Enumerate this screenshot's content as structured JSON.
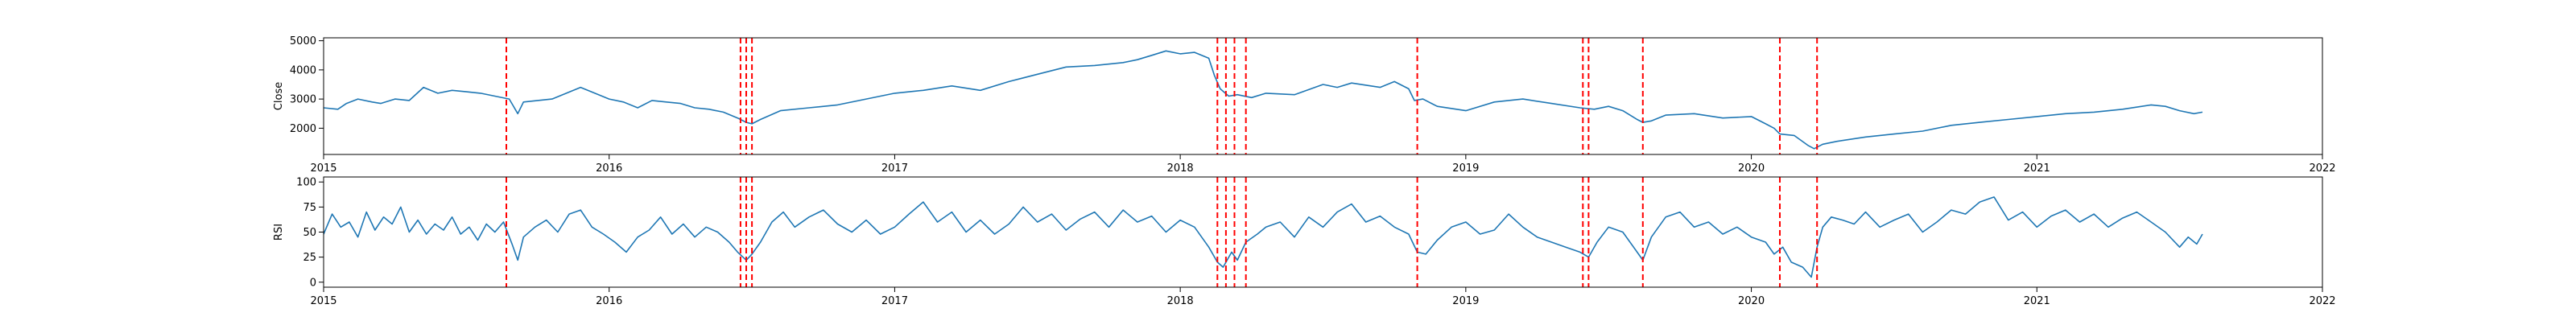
{
  "chart_data": [
    {
      "type": "line",
      "series_name": "Close",
      "title": "",
      "xlabel": "",
      "ylabel": "Close",
      "xlim": [
        2015.0,
        2022.0
      ],
      "ylim": [
        1100,
        5100
      ],
      "x_ticks": [
        2015,
        2016,
        2017,
        2018,
        2019,
        2020,
        2021,
        2022
      ],
      "x_tick_labels": [
        "2015",
        "2016",
        "2017",
        "2018",
        "2019",
        "2020",
        "2021",
        "2022"
      ],
      "y_ticks": [
        2000,
        3000,
        4000,
        5000
      ],
      "y_tick_labels": [
        "2000",
        "3000",
        "4000",
        "5000"
      ],
      "color": "#1f77b4",
      "x": [
        2015.0,
        2015.05,
        2015.08,
        2015.12,
        2015.17,
        2015.2,
        2015.25,
        2015.3,
        2015.35,
        2015.4,
        2015.45,
        2015.5,
        2015.55,
        2015.6,
        2015.65,
        2015.68,
        2015.7,
        2015.75,
        2015.8,
        2015.85,
        2015.9,
        2015.95,
        2016.0,
        2016.05,
        2016.1,
        2016.15,
        2016.2,
        2016.25,
        2016.3,
        2016.35,
        2016.4,
        2016.45,
        2016.48,
        2016.5,
        2016.53,
        2016.6,
        2016.7,
        2016.8,
        2016.9,
        2017.0,
        2017.1,
        2017.2,
        2017.3,
        2017.4,
        2017.5,
        2017.6,
        2017.7,
        2017.8,
        2017.85,
        2017.9,
        2017.95,
        2018.0,
        2018.05,
        2018.1,
        2018.12,
        2018.14,
        2018.17,
        2018.2,
        2018.25,
        2018.3,
        2018.4,
        2018.5,
        2018.55,
        2018.6,
        2018.7,
        2018.75,
        2018.8,
        2018.82,
        2018.85,
        2018.9,
        2019.0,
        2019.1,
        2019.2,
        2019.3,
        2019.4,
        2019.45,
        2019.5,
        2019.55,
        2019.6,
        2019.62,
        2019.65,
        2019.7,
        2019.8,
        2019.9,
        2020.0,
        2020.05,
        2020.08,
        2020.1,
        2020.15,
        2020.2,
        2020.22,
        2020.25,
        2020.3,
        2020.4,
        2020.5,
        2020.6,
        2020.7,
        2020.8,
        2020.9,
        2021.0,
        2021.1,
        2021.2,
        2021.3,
        2021.4,
        2021.45,
        2021.5,
        2021.55,
        2021.58
      ],
      "values": [
        2700,
        2650,
        2850,
        3000,
        2900,
        2850,
        3000,
        2950,
        3400,
        3200,
        3300,
        3250,
        3200,
        3100,
        3000,
        2500,
        2900,
        2950,
        3000,
        3200,
        3400,
        3200,
        3000,
        2900,
        2700,
        2950,
        2900,
        2850,
        2700,
        2650,
        2550,
        2350,
        2200,
        2150,
        2300,
        2600,
        2700,
        2800,
        3000,
        3200,
        3300,
        3450,
        3300,
        3600,
        3850,
        4100,
        4150,
        4250,
        4350,
        4500,
        4650,
        4550,
        4600,
        4400,
        3800,
        3350,
        3100,
        3150,
        3050,
        3200,
        3150,
        3500,
        3400,
        3550,
        3400,
        3600,
        3350,
        2950,
        3000,
        2750,
        2600,
        2900,
        3000,
        2850,
        2700,
        2650,
        2750,
        2600,
        2300,
        2200,
        2250,
        2450,
        2500,
        2350,
        2400,
        2150,
        2000,
        1800,
        1750,
        1400,
        1300,
        1450,
        1550,
        1700,
        1800,
        1900,
        2100,
        2200,
        2300,
        2400,
        2500,
        2550,
        2650,
        2800,
        2750,
        2600,
        2500,
        2550
      ]
    },
    {
      "type": "line",
      "series_name": "RSI",
      "title": "",
      "xlabel": "",
      "ylabel": "RSI",
      "xlim": [
        2015.0,
        2022.0
      ],
      "ylim": [
        -5,
        105
      ],
      "x_ticks": [
        2015,
        2016,
        2017,
        2018,
        2019,
        2020,
        2021,
        2022
      ],
      "x_tick_labels": [
        "2015",
        "2016",
        "2017",
        "2018",
        "2019",
        "2020",
        "2021",
        "2022"
      ],
      "y_ticks": [
        0,
        25,
        50,
        75,
        100
      ],
      "y_tick_labels": [
        "0",
        "25",
        "50",
        "75",
        "100"
      ],
      "color": "#1f77b4",
      "x": [
        2015.0,
        2015.03,
        2015.06,
        2015.09,
        2015.12,
        2015.15,
        2015.18,
        2015.21,
        2015.24,
        2015.27,
        2015.3,
        2015.33,
        2015.36,
        2015.39,
        2015.42,
        2015.45,
        2015.48,
        2015.51,
        2015.54,
        2015.57,
        2015.6,
        2015.63,
        2015.66,
        2015.68,
        2015.7,
        2015.74,
        2015.78,
        2015.82,
        2015.86,
        2015.9,
        2015.94,
        2015.98,
        2016.02,
        2016.06,
        2016.1,
        2016.14,
        2016.18,
        2016.22,
        2016.26,
        2016.3,
        2016.34,
        2016.38,
        2016.42,
        2016.45,
        2016.48,
        2016.5,
        2016.53,
        2016.57,
        2016.61,
        2016.65,
        2016.7,
        2016.75,
        2016.8,
        2016.85,
        2016.9,
        2016.95,
        2017.0,
        2017.05,
        2017.1,
        2017.15,
        2017.2,
        2017.25,
        2017.3,
        2017.35,
        2017.4,
        2017.45,
        2017.5,
        2017.55,
        2017.6,
        2017.65,
        2017.7,
        2017.75,
        2017.8,
        2017.85,
        2017.9,
        2017.95,
        2018.0,
        2018.05,
        2018.1,
        2018.13,
        2018.15,
        2018.18,
        2018.2,
        2018.23,
        2018.27,
        2018.3,
        2018.35,
        2018.4,
        2018.45,
        2018.5,
        2018.55,
        2018.6,
        2018.65,
        2018.7,
        2018.75,
        2018.8,
        2018.83,
        2018.86,
        2018.9,
        2018.95,
        2019.0,
        2019.05,
        2019.1,
        2019.15,
        2019.2,
        2019.25,
        2019.3,
        2019.35,
        2019.4,
        2019.43,
        2019.46,
        2019.5,
        2019.55,
        2019.6,
        2019.62,
        2019.65,
        2019.7,
        2019.75,
        2019.8,
        2019.85,
        2019.9,
        2019.95,
        2020.0,
        2020.05,
        2020.08,
        2020.11,
        2020.14,
        2020.18,
        2020.21,
        2020.23,
        2020.25,
        2020.28,
        2020.32,
        2020.36,
        2020.4,
        2020.45,
        2020.5,
        2020.55,
        2020.6,
        2020.65,
        2020.7,
        2020.75,
        2020.8,
        2020.85,
        2020.9,
        2020.95,
        2021.0,
        2021.05,
        2021.1,
        2021.15,
        2021.2,
        2021.25,
        2021.3,
        2021.35,
        2021.4,
        2021.45,
        2021.5,
        2021.53,
        2021.56,
        2021.58
      ],
      "values": [
        48,
        68,
        55,
        60,
        45,
        70,
        52,
        65,
        58,
        75,
        50,
        62,
        48,
        58,
        52,
        65,
        48,
        55,
        42,
        58,
        50,
        60,
        38,
        22,
        45,
        55,
        62,
        50,
        68,
        72,
        55,
        48,
        40,
        30,
        45,
        52,
        65,
        48,
        58,
        45,
        55,
        50,
        40,
        30,
        22,
        28,
        40,
        60,
        70,
        55,
        65,
        72,
        58,
        50,
        62,
        48,
        55,
        68,
        80,
        60,
        70,
        50,
        62,
        48,
        58,
        75,
        60,
        68,
        52,
        63,
        70,
        55,
        72,
        60,
        66,
        50,
        62,
        55,
        35,
        20,
        15,
        30,
        22,
        40,
        48,
        55,
        60,
        45,
        65,
        55,
        70,
        78,
        60,
        66,
        55,
        48,
        30,
        28,
        42,
        55,
        60,
        48,
        52,
        68,
        55,
        45,
        40,
        35,
        30,
        25,
        40,
        55,
        50,
        30,
        22,
        45,
        65,
        70,
        55,
        60,
        48,
        55,
        45,
        40,
        28,
        35,
        20,
        15,
        5,
        35,
        55,
        65,
        62,
        58,
        70,
        55,
        62,
        68,
        50,
        60,
        72,
        68,
        80,
        85,
        62,
        70,
        55,
        66,
        72,
        60,
        68,
        55,
        64,
        70,
        60,
        50,
        35,
        45,
        38,
        48
      ]
    }
  ],
  "event_markers": {
    "color": "#ff0000",
    "style": "dashed",
    "x": [
      2015.64,
      2016.46,
      2016.48,
      2016.5,
      2018.13,
      2018.16,
      2018.19,
      2018.23,
      2018.83,
      2019.41,
      2019.43,
      2019.62,
      2020.1,
      2020.23
    ]
  }
}
